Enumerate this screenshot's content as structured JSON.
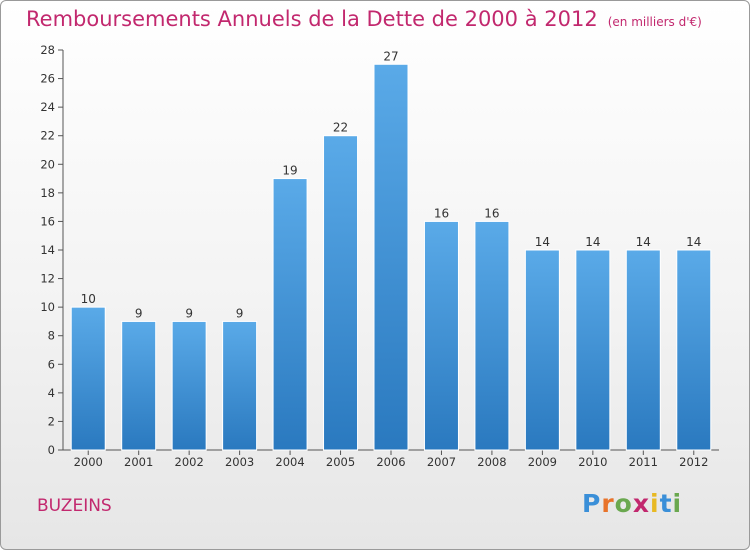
{
  "header": {
    "title": "Remboursements Annuels de la Dette de 2000 à 2012",
    "unit": "(en milliers d'€)"
  },
  "footer": {
    "commune": "BUZEINS",
    "logo_letters": [
      "P",
      "r",
      "o",
      "x",
      "i",
      "t",
      "i"
    ]
  },
  "colors": {
    "title": "#c2286e",
    "bar_top": "#5aaae8",
    "bar_bottom": "#2a79bf",
    "logo": [
      "#3a8fd8",
      "#e8732a",
      "#6aa84f",
      "#c2286e",
      "#e8b923",
      "#3a8fd8",
      "#6aa84f"
    ]
  },
  "chart_data": {
    "type": "bar",
    "title": "Remboursements Annuels de la Dette de 2000 à 2012",
    "unit": "(en milliers d'€)",
    "categories": [
      "2000",
      "2001",
      "2002",
      "2003",
      "2004",
      "2005",
      "2006",
      "2007",
      "2008",
      "2009",
      "2010",
      "2011",
      "2012"
    ],
    "values": [
      10,
      9,
      9,
      9,
      19,
      22,
      27,
      16,
      16,
      14,
      14,
      14,
      14
    ],
    "ylim": [
      0,
      28
    ],
    "yticks": [
      0,
      2,
      4,
      6,
      8,
      10,
      12,
      14,
      16,
      18,
      20,
      22,
      24,
      26,
      28
    ],
    "grid": false
  }
}
